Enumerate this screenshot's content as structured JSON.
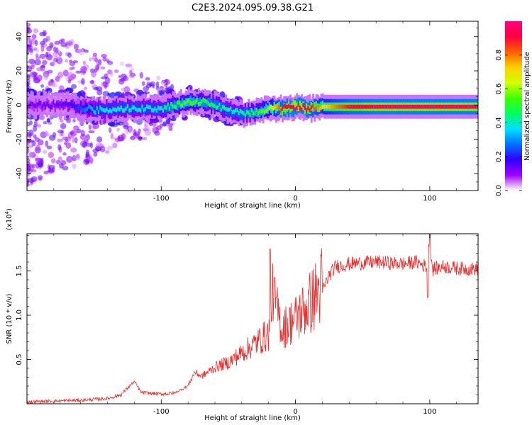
{
  "title": "C2E3.2024.095.09.38.G21",
  "chart_data": [
    {
      "type": "heatmap",
      "xlabel": "Height of straight line (km)",
      "ylabel": "Frequency (Hz)",
      "xlim": [
        -200,
        136
      ],
      "ylim": [
        -50,
        49
      ],
      "x_ticks": [
        -100,
        0,
        100
      ],
      "y_ticks": [
        -40,
        -20,
        0,
        20,
        40
      ],
      "colorbar": {
        "label": "Normalized spectral amplitude",
        "range": [
          0,
          1
        ],
        "ticks": [
          0.0,
          0.2,
          0.4,
          0.6,
          0.8
        ],
        "colors": [
          "#ffffff",
          "#a000ff",
          "#3000ff",
          "#0070ff",
          "#00e0ff",
          "#00ff60",
          "#40ff00",
          "#d0ff00",
          "#ffd000",
          "#ff6000",
          "#ff0040",
          "#ff0080"
        ]
      },
      "ridge": {
        "x": [
          -200,
          -170,
          -150,
          -130,
          -110,
          -100,
          -90,
          -80,
          -70,
          -60,
          -50,
          -40,
          -30,
          -20,
          -10,
          0,
          10,
          20,
          40,
          60,
          80,
          100,
          136
        ],
        "freq": [
          0,
          0,
          -3,
          -2,
          -2,
          -2,
          0,
          2,
          2,
          0,
          -3,
          -5,
          -4,
          -2,
          -2,
          -1,
          -2,
          -1,
          -1,
          -1,
          -1,
          -1,
          -1
        ],
        "amplitude": [
          0.12,
          0.15,
          0.35,
          0.4,
          0.38,
          0.4,
          0.5,
          0.55,
          0.5,
          0.45,
          0.4,
          0.42,
          0.5,
          0.6,
          0.9,
          0.95,
          0.92,
          0.7,
          0.9,
          0.95,
          0.95,
          0.95,
          0.95
        ]
      }
    },
    {
      "type": "line",
      "xlabel": "Height of straight line (km)",
      "ylabel": "SNR (10 * v/v)",
      "y_multiplier": "(x10",
      "y_multiplier_exp": "4",
      "y_multiplier_close": ")",
      "xlim": [
        -200,
        136
      ],
      "ylim": [
        0,
        1.92
      ],
      "x_ticks": [
        -100,
        0,
        100
      ],
      "y_ticks": [
        0.5,
        1.0,
        1.5
      ],
      "y_tick_labels": [
        "0.5",
        "1.0",
        "1.5"
      ],
      "color": "#e83030",
      "series": [
        {
          "x": [
            -200,
            -180,
            -160,
            -140,
            -130,
            -125,
            -120,
            -115,
            -110,
            -100,
            -90,
            -80,
            -75,
            -70,
            -60,
            -50,
            -40,
            -30,
            -20,
            -17,
            -10,
            0,
            10,
            18,
            25,
            30,
            40,
            60,
            80,
            90,
            98,
            100,
            102,
            110,
            120,
            136
          ],
          "y": [
            0.02,
            0.03,
            0.04,
            0.06,
            0.1,
            0.18,
            0.25,
            0.13,
            0.12,
            0.11,
            0.12,
            0.2,
            0.35,
            0.3,
            0.4,
            0.45,
            0.55,
            0.65,
            0.75,
            1.2,
            0.8,
            0.9,
            1.05,
            1.2,
            1.45,
            1.55,
            1.58,
            1.6,
            1.58,
            1.6,
            1.55,
            1.85,
            1.52,
            1.55,
            1.53,
            1.52
          ]
        }
      ]
    }
  ]
}
